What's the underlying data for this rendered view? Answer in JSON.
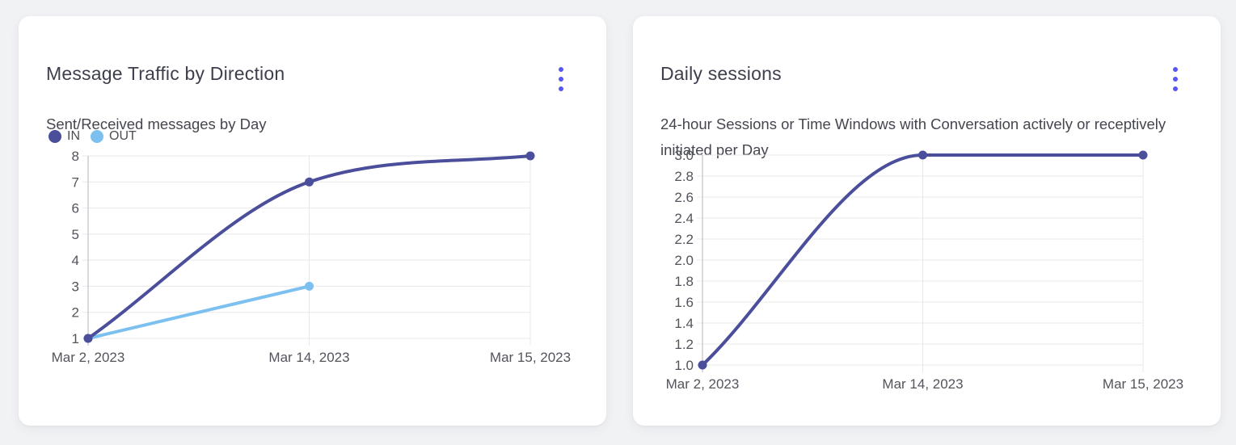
{
  "page": {
    "background": "#f1f2f4"
  },
  "colors": {
    "accent_indigo": "#4a4e9b",
    "accent_light_blue": "#7cc0f0",
    "menu_dots": "#5a58f2",
    "grid": "#e8e8eb",
    "axis": "#cfd0d6",
    "tick_text": "#53545c"
  },
  "cards": [
    {
      "title": "Message Traffic by Direction",
      "subtitle": "Sent/Received messages by Day",
      "menu_icon": "kebab-menu",
      "chart_data": {
        "type": "line",
        "x": [
          "Mar 2, 2023",
          "Mar 14, 2023",
          "Mar 15, 2023"
        ],
        "series": [
          {
            "name": "IN",
            "color": "#4a4e9b",
            "values": [
              1,
              7,
              8
            ]
          },
          {
            "name": "OUT",
            "color": "#7cc0f0",
            "values": [
              1,
              3,
              null
            ]
          }
        ],
        "legend_position": "top-left",
        "ylim": [
          1,
          8
        ],
        "yticks": [
          1,
          2,
          3,
          4,
          5,
          6,
          7,
          8
        ],
        "ytick_labels": [
          "1",
          "2",
          "3",
          "4",
          "5",
          "6",
          "7",
          "8"
        ],
        "grid": true,
        "curve": "monotone"
      }
    },
    {
      "title": "Daily sessions",
      "subtitle": "24-hour Sessions or Time Windows with Conversation actively or receptively initiated per Day",
      "menu_icon": "kebab-menu",
      "chart_data": {
        "type": "line",
        "x": [
          "Mar 2, 2023",
          "Mar 14, 2023",
          "Mar 15, 2023"
        ],
        "series": [
          {
            "color": "#4a4e9b",
            "values": [
              1.0,
              3.0,
              3.0
            ]
          }
        ],
        "legend_position": "none",
        "ylim": [
          1.0,
          3.0
        ],
        "yticks": [
          1.0,
          1.2,
          1.4,
          1.6,
          1.8,
          2.0,
          2.2,
          2.4,
          2.6,
          2.8,
          3.0
        ],
        "ytick_labels": [
          "1.0",
          "1.2",
          "1.4",
          "1.6",
          "1.8",
          "2.0",
          "2.2",
          "2.4",
          "2.6",
          "2.8",
          "3.0"
        ],
        "grid": true,
        "curve": "monotone"
      }
    }
  ]
}
